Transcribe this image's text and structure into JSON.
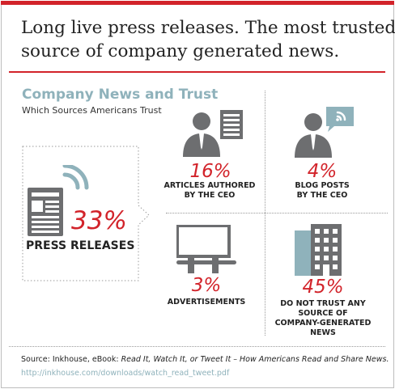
{
  "headline": {
    "line1": "Long live press releases. The most trusted",
    "line2": "source of company generated news."
  },
  "section": {
    "title": "Company News and Trust",
    "subtitle": "Which Sources Americans Trust"
  },
  "colors": {
    "accent_red": "#d2232a",
    "accent_blue": "#8fb2bb",
    "icon_gray": "#6d6e70"
  },
  "chart_data": {
    "type": "table",
    "categories": [
      "PRESS RELEASES",
      "ARTICLES AUTHORED BY THE CEO",
      "BLOG POSTS BY THE CEO",
      "ADVERTISEMENTS",
      "DO NOT TRUST ANY SOURCE OF COMPANY-GENERATED NEWS"
    ],
    "values": [
      33,
      16,
      4,
      3,
      45
    ],
    "unit": "%",
    "items": [
      {
        "pct": "33%",
        "label_lines": [
          "PRESS RELEASES"
        ],
        "icon": "newspaper-icon"
      },
      {
        "pct": "16%",
        "label_lines": [
          "ARTICLES AUTHORED",
          "BY THE CEO"
        ],
        "icon": "ceo-article-icon"
      },
      {
        "pct": "4%",
        "label_lines": [
          "BLOG POSTS",
          "BY THE CEO"
        ],
        "icon": "ceo-blog-icon"
      },
      {
        "pct": "3%",
        "label_lines": [
          "ADVERTISEMENTS"
        ],
        "icon": "billboard-icon"
      },
      {
        "pct": "45%",
        "label_lines": [
          "DO NOT TRUST ANY",
          "SOURCE OF",
          "COMPANY-GENERATED",
          "NEWS"
        ],
        "icon": "building-icon"
      }
    ]
  },
  "source": {
    "prefix": "Source: Inkhouse, eBook: ",
    "title": "Read It, Watch It, or Tweet It – How Americans Read and Share News.",
    "url": "http://inkhouse.com/downloads/watch_read_tweet.pdf"
  }
}
